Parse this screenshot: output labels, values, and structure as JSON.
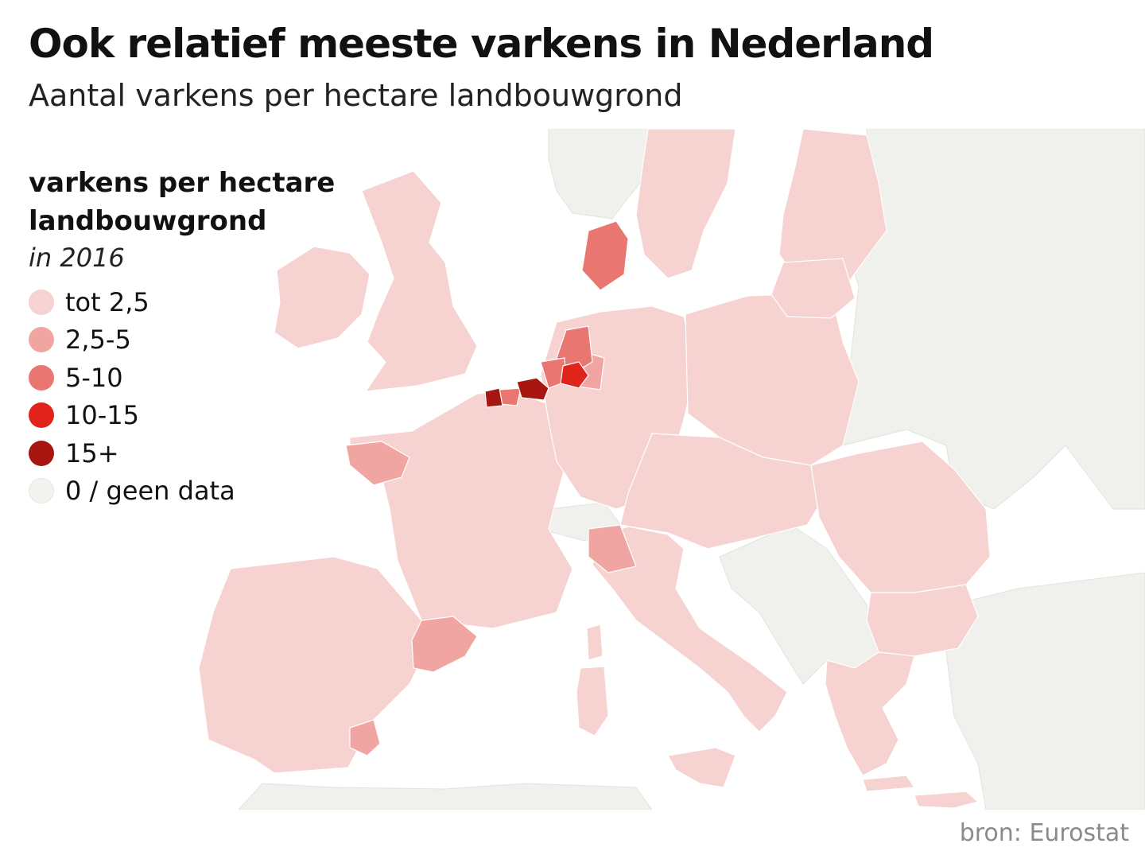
{
  "title": "Ook relatief meeste varkens in Nederland",
  "subtitle": "Aantal varkens per hectare landbouwgrond",
  "legend": {
    "title_line1": "varkens per hectare",
    "title_line2": "landbouwgrond",
    "year": "in 2016",
    "items": [
      {
        "label": "tot 2,5",
        "color": "#f6d2d0"
      },
      {
        "label": "2,5-5",
        "color": "#f1a5a2"
      },
      {
        "label": "5-10",
        "color": "#ea7672"
      },
      {
        "label": "10-15",
        "color": "#e0241c"
      },
      {
        "label": "15+",
        "color": "#a81612"
      },
      {
        "label": "0 / geen data",
        "color": "#f3f3ef"
      }
    ]
  },
  "map_colors": {
    "sea": "#ffffff",
    "no_data": "#f0f1ed",
    "border": "#ffffff"
  },
  "source": "bron: Eurostat"
}
